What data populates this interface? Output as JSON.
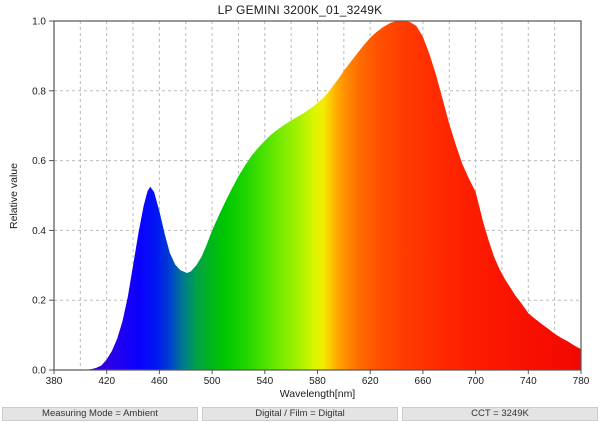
{
  "window": {
    "title": "LP GEMINI 3200K_01_3249K"
  },
  "chart_data": {
    "type": "area",
    "title": "LP GEMINI 3200K_01_3249K",
    "xlabel": "Wavelength[nm]",
    "ylabel": "Relative value",
    "xlim": [
      380,
      780
    ],
    "ylim": [
      0.0,
      1.0
    ],
    "x_tick_labels": [
      380,
      420,
      460,
      500,
      540,
      580,
      620,
      660,
      700,
      740,
      780
    ],
    "x_grid_step": 20,
    "y_ticks": [
      0.0,
      0.2,
      0.4,
      0.6,
      0.8,
      1.0
    ],
    "grid": true,
    "legend": "none",
    "annotations": {
      "blue_peak": {
        "wavelength": 453,
        "value": 0.525
      },
      "valley": {
        "wavelength": 481,
        "value": 0.28
      },
      "main_peak": {
        "wavelength": 643,
        "value": 1.0
      }
    },
    "points": [
      [
        380,
        0.0
      ],
      [
        396,
        0.0
      ],
      [
        404,
        0.001
      ],
      [
        408,
        0.002
      ],
      [
        412,
        0.006
      ],
      [
        416,
        0.013
      ],
      [
        420,
        0.03
      ],
      [
        424,
        0.055
      ],
      [
        428,
        0.09
      ],
      [
        432,
        0.14
      ],
      [
        436,
        0.21
      ],
      [
        440,
        0.3
      ],
      [
        444,
        0.39
      ],
      [
        448,
        0.47
      ],
      [
        451,
        0.512
      ],
      [
        453,
        0.525
      ],
      [
        456,
        0.51
      ],
      [
        460,
        0.455
      ],
      [
        464,
        0.39
      ],
      [
        468,
        0.335
      ],
      [
        472,
        0.302
      ],
      [
        476,
        0.286
      ],
      [
        481,
        0.278
      ],
      [
        484,
        0.283
      ],
      [
        488,
        0.3
      ],
      [
        492,
        0.325
      ],
      [
        496,
        0.36
      ],
      [
        500,
        0.4
      ],
      [
        505,
        0.442
      ],
      [
        510,
        0.482
      ],
      [
        515,
        0.52
      ],
      [
        520,
        0.555
      ],
      [
        525,
        0.586
      ],
      [
        530,
        0.614
      ],
      [
        535,
        0.637
      ],
      [
        540,
        0.657
      ],
      [
        545,
        0.675
      ],
      [
        550,
        0.69
      ],
      [
        555,
        0.703
      ],
      [
        560,
        0.715
      ],
      [
        565,
        0.726
      ],
      [
        570,
        0.737
      ],
      [
        575,
        0.75
      ],
      [
        580,
        0.765
      ],
      [
        584,
        0.778
      ],
      [
        588,
        0.795
      ],
      [
        592,
        0.815
      ],
      [
        596,
        0.835
      ],
      [
        600,
        0.858
      ],
      [
        605,
        0.882
      ],
      [
        610,
        0.906
      ],
      [
        615,
        0.93
      ],
      [
        620,
        0.952
      ],
      [
        625,
        0.969
      ],
      [
        630,
        0.983
      ],
      [
        635,
        0.994
      ],
      [
        640,
        1.0
      ],
      [
        646,
        1.0
      ],
      [
        650,
        0.997
      ],
      [
        655,
        0.986
      ],
      [
        660,
        0.955
      ],
      [
        665,
        0.905
      ],
      [
        670,
        0.845
      ],
      [
        675,
        0.775
      ],
      [
        680,
        0.705
      ],
      [
        685,
        0.645
      ],
      [
        690,
        0.59
      ],
      [
        695,
        0.548
      ],
      [
        700,
        0.51
      ],
      [
        703,
        0.465
      ],
      [
        706,
        0.42
      ],
      [
        710,
        0.37
      ],
      [
        714,
        0.325
      ],
      [
        718,
        0.29
      ],
      [
        722,
        0.262
      ],
      [
        726,
        0.238
      ],
      [
        730,
        0.214
      ],
      [
        735,
        0.19
      ],
      [
        740,
        0.163
      ],
      [
        745,
        0.147
      ],
      [
        750,
        0.132
      ],
      [
        755,
        0.118
      ],
      [
        760,
        0.104
      ],
      [
        765,
        0.092
      ],
      [
        770,
        0.082
      ],
      [
        775,
        0.07
      ],
      [
        780,
        0.06
      ]
    ],
    "spectrum_stops": [
      [
        380,
        "#2a00b4"
      ],
      [
        420,
        "#3000e0"
      ],
      [
        432,
        "#1c00f2"
      ],
      [
        445,
        "#0a00ff"
      ],
      [
        458,
        "#0018f2"
      ],
      [
        468,
        "#0040cf"
      ],
      [
        478,
        "#007a90"
      ],
      [
        488,
        "#00a04a"
      ],
      [
        498,
        "#00b41e"
      ],
      [
        510,
        "#00c800"
      ],
      [
        525,
        "#1ed400"
      ],
      [
        540,
        "#4ce200"
      ],
      [
        555,
        "#82ec00"
      ],
      [
        567,
        "#aaf200"
      ],
      [
        577,
        "#d8f600"
      ],
      [
        584,
        "#f2ee00"
      ],
      [
        589,
        "#fcd000"
      ],
      [
        594,
        "#ffae00"
      ],
      [
        602,
        "#ff8a00"
      ],
      [
        612,
        "#ff6c00"
      ],
      [
        625,
        "#ff5200"
      ],
      [
        645,
        "#ff3c00"
      ],
      [
        672,
        "#ff2a00"
      ],
      [
        700,
        "#fc1c00"
      ],
      [
        740,
        "#f81000"
      ],
      [
        780,
        "#f20800"
      ]
    ]
  },
  "footer": {
    "items": [
      {
        "label": "Measuring Mode = Ambient"
      },
      {
        "label": "Digital / Film = Digital"
      },
      {
        "label": "CCT = 3249K"
      }
    ]
  },
  "colors": {
    "background": "#ffffff",
    "spine": "#555555",
    "grid": "#bbbbbb",
    "text": "#1a1a1a",
    "footer_bg": "#e4e4e4",
    "footer_border": "#cccccc",
    "footer_text": "#333333"
  }
}
